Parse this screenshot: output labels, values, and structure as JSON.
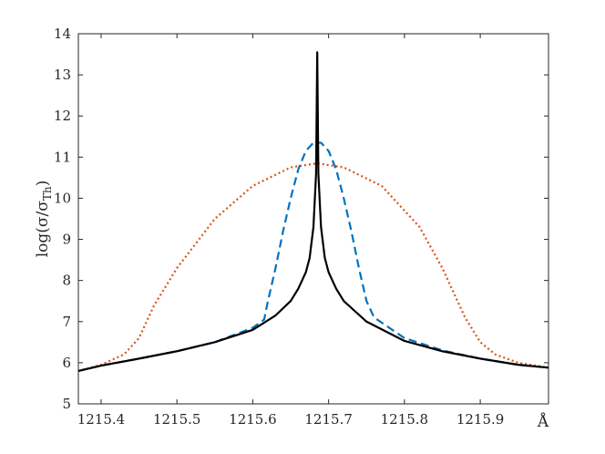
{
  "chart_data": {
    "type": "line",
    "title": "",
    "xlabel": "Å",
    "ylabel": "log(σ/σ_Th)",
    "ylabel_parts": {
      "main": "log(σ/σ",
      "sub": "Th",
      "close": ")"
    },
    "xlim": [
      1215.37,
      1215.99
    ],
    "ylim": [
      5,
      14
    ],
    "xticks": [
      1215.4,
      1215.5,
      1215.6,
      1215.7,
      1215.8,
      1215.9
    ],
    "xtick_labels": [
      "1215.4",
      "1215.5",
      "1215.6",
      "1215.7",
      "1215.8",
      "1215.9"
    ],
    "yticks": [
      5,
      6,
      7,
      8,
      9,
      10,
      11,
      12,
      13,
      14
    ],
    "ytick_labels": [
      "5",
      "6",
      "7",
      "8",
      "9",
      "10",
      "11",
      "12",
      "13",
      "14"
    ],
    "grid": false,
    "legend": "none",
    "series": [
      {
        "style": "solid",
        "color": "#000000",
        "x": [
          1215.37,
          1215.4,
          1215.45,
          1215.5,
          1215.55,
          1215.6,
          1215.63,
          1215.65,
          1215.66,
          1215.67,
          1215.675,
          1215.68,
          1215.6835,
          1215.685,
          1215.6865,
          1215.69,
          1215.695,
          1215.7,
          1215.71,
          1215.72,
          1215.75,
          1215.8,
          1215.85,
          1215.9,
          1215.95,
          1215.99
        ],
        "y": [
          5.8,
          5.93,
          6.1,
          6.28,
          6.5,
          6.8,
          7.15,
          7.5,
          7.8,
          8.2,
          8.55,
          9.3,
          10.6,
          13.55,
          10.6,
          9.3,
          8.55,
          8.2,
          7.8,
          7.5,
          7.0,
          6.53,
          6.28,
          6.1,
          5.95,
          5.88
        ]
      },
      {
        "style": "dashed",
        "color": "#0072bd",
        "x": [
          1215.37,
          1215.4,
          1215.45,
          1215.5,
          1215.55,
          1215.6,
          1215.615,
          1215.62,
          1215.63,
          1215.64,
          1215.65,
          1215.66,
          1215.67,
          1215.68,
          1215.685,
          1215.69,
          1215.7,
          1215.71,
          1215.72,
          1215.73,
          1215.74,
          1215.75,
          1215.76,
          1215.8,
          1215.85,
          1215.9,
          1215.95,
          1215.99
        ],
        "y": [
          5.8,
          5.93,
          6.1,
          6.28,
          6.5,
          6.85,
          7.05,
          7.5,
          8.3,
          9.2,
          10.0,
          10.7,
          11.15,
          11.35,
          11.35,
          11.35,
          11.15,
          10.7,
          10.0,
          9.2,
          8.3,
          7.5,
          7.1,
          6.6,
          6.3,
          6.1,
          5.95,
          5.88
        ]
      },
      {
        "style": "dotted",
        "color": "#d95319",
        "x": [
          1215.37,
          1215.4,
          1215.43,
          1215.45,
          1215.47,
          1215.5,
          1215.55,
          1215.6,
          1215.65,
          1215.685,
          1215.72,
          1215.77,
          1215.82,
          1215.85,
          1215.88,
          1215.9,
          1215.92,
          1215.95,
          1215.99
        ],
        "y": [
          5.8,
          5.95,
          6.2,
          6.6,
          7.4,
          8.3,
          9.5,
          10.3,
          10.75,
          10.85,
          10.75,
          10.3,
          9.3,
          8.3,
          7.1,
          6.5,
          6.2,
          6.0,
          5.88
        ]
      }
    ]
  }
}
